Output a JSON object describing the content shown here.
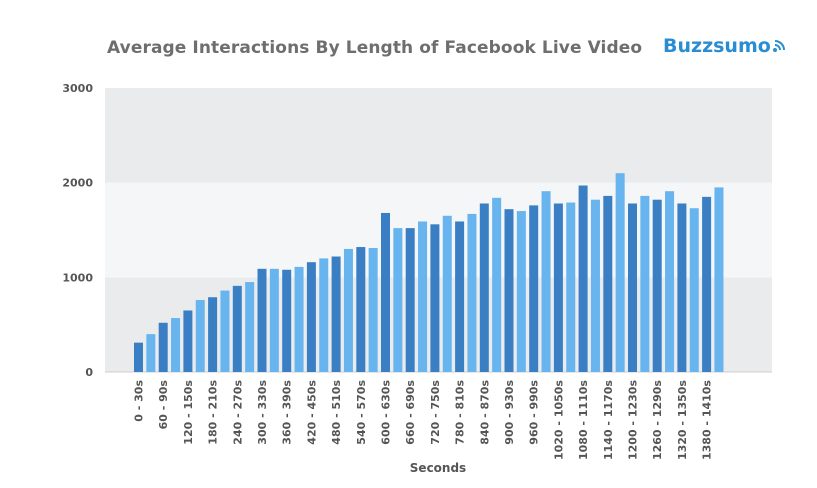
{
  "title": "Average Interactions By Length of Facebook Live Video",
  "logo": {
    "text": "Buzzsumo",
    "icon": "wifi-signal-icon",
    "color": "#2a8dd4"
  },
  "colors": {
    "dark_bar": "#3a7fc4",
    "light_bar": "#68b4ee",
    "band_dark": "#e9ebed",
    "band_light": "#f4f6f7"
  },
  "chart_data": {
    "type": "bar",
    "title": "Average Interactions By Length of Facebook Live Video",
    "xlabel": "Seconds",
    "ylabel": "",
    "ylim": [
      0,
      3000
    ],
    "yticks": [
      0,
      1000,
      2000,
      3000
    ],
    "grid": "alternating horizontal bands",
    "tick_labels": [
      "0 - 30s",
      "60 - 90s",
      "120 - 150s",
      "180 - 210s",
      "240 - 270s",
      "300 - 330s",
      "360 - 390s",
      "420 - 450s",
      "480 - 510s",
      "540 - 570s",
      "600 - 630s",
      "660 - 690s",
      "720 - 750s",
      "780 - 810s",
      "840 - 870s",
      "900 - 930s",
      "960 - 990s",
      "1020 - 1050s",
      "1080 - 1110s",
      "1140 - 1170s",
      "1200 - 1230s",
      "1260 - 1290s",
      "1320 - 1350s",
      "1380 - 1410s"
    ],
    "values": [
      310,
      400,
      520,
      570,
      650,
      760,
      790,
      860,
      910,
      950,
      1090,
      1090,
      1080,
      1110,
      1160,
      1200,
      1220,
      1300,
      1320,
      1310,
      1680,
      1520,
      1520,
      1590,
      1560,
      1650,
      1590,
      1670,
      1780,
      1840,
      1720,
      1700,
      1760,
      1910,
      1780,
      1790,
      1970,
      1820,
      1860,
      2100,
      1780,
      1860,
      1820,
      1910,
      1780,
      1730,
      1850,
      1950
    ]
  }
}
